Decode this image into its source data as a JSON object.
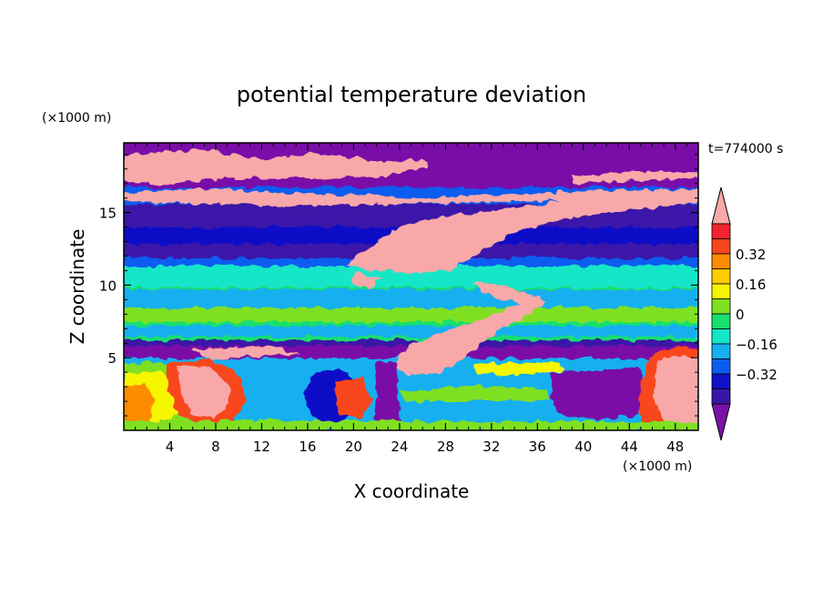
{
  "chart_data": {
    "type": "heatmap",
    "title": "potential temperature deviation",
    "xlabel": "X coordinate",
    "ylabel": "Z coordinate",
    "x_unit": "(×1000 m)",
    "y_unit": "(×1000 m)",
    "time_label": "t=774000 s",
    "xlim": [
      0,
      50
    ],
    "ylim": [
      0,
      19.8
    ],
    "x_ticks": [
      4,
      8,
      12,
      16,
      20,
      24,
      28,
      32,
      36,
      40,
      44,
      48
    ],
    "y_ticks": [
      5,
      10,
      15
    ],
    "colorbar": {
      "levels": [
        -0.48,
        -0.4,
        -0.32,
        -0.24,
        -0.16,
        -0.08,
        0,
        0.08,
        0.16,
        0.24,
        0.32,
        0.4,
        0.48
      ],
      "tick_values": [
        0.32,
        0.16,
        0,
        -0.16,
        -0.32
      ],
      "tick_labels": [
        "0.32",
        "0.16",
        "0",
        "−0.16",
        "−0.32"
      ],
      "colors": [
        "#7a11a8",
        "#3a16a8",
        "#1010c8",
        "#0c5cf0",
        "#16b0f0",
        "#14e6c8",
        "#18e06e",
        "#7fe020",
        "#f6f600",
        "#fdcc00",
        "#fd8c00",
        "#f8461e",
        "#f2242c",
        "#f8a8a8"
      ],
      "extend": "both"
    }
  }
}
